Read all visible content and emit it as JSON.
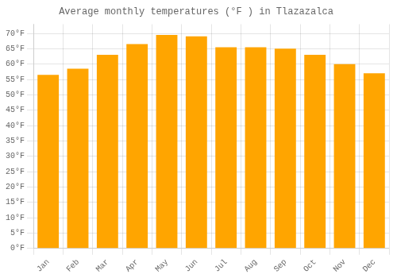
{
  "chart_data": {
    "type": "bar",
    "title": "Average monthly temperatures (°F ) in Tlazazalca",
    "categories": [
      "Jan",
      "Feb",
      "Mar",
      "Apr",
      "May",
      "Jun",
      "Jul",
      "Aug",
      "Sep",
      "Oct",
      "Nov",
      "Dec"
    ],
    "values": [
      56.5,
      58.5,
      63.0,
      66.5,
      69.5,
      69.0,
      65.5,
      65.5,
      65.0,
      63.0,
      60.0,
      57.0
    ],
    "color": "#FFA500",
    "ylim": [
      0,
      73
    ],
    "yticks": [
      {
        "value": 0,
        "label": "0°F"
      },
      {
        "value": 5,
        "label": "5°F"
      },
      {
        "value": 10,
        "label": "10°F"
      },
      {
        "value": 15,
        "label": "15°F"
      },
      {
        "value": 20,
        "label": "20°F"
      },
      {
        "value": 25,
        "label": "25°F"
      },
      {
        "value": 30,
        "label": "30°F"
      },
      {
        "value": 35,
        "label": "35°F"
      },
      {
        "value": 40,
        "label": "40°F"
      },
      {
        "value": 45,
        "label": "45°F"
      },
      {
        "value": 50,
        "label": "50°F"
      },
      {
        "value": 55,
        "label": "55°F"
      },
      {
        "value": 60,
        "label": "60°F"
      },
      {
        "value": 65,
        "label": "65°F"
      },
      {
        "value": 70,
        "label": "70°F"
      }
    ],
    "grid": true
  }
}
